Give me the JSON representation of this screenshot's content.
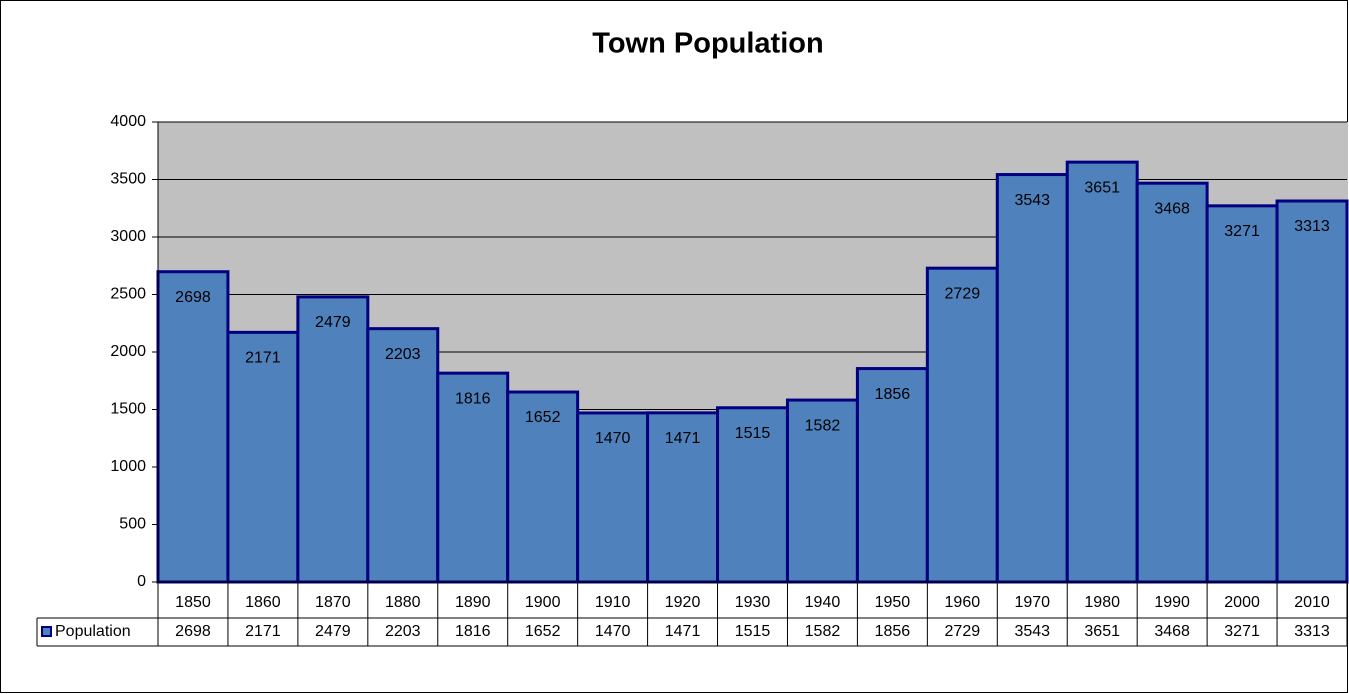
{
  "chart_data": {
    "type": "bar",
    "title": "Town Population",
    "categories": [
      "1850",
      "1860",
      "1870",
      "1880",
      "1890",
      "1900",
      "1910",
      "1920",
      "1930",
      "1940",
      "1950",
      "1960",
      "1970",
      "1980",
      "1990",
      "2000",
      "2010"
    ],
    "series": [
      {
        "name": "Population",
        "color": "#4f81bd",
        "values": [
          2698,
          2171,
          2479,
          2203,
          1816,
          1652,
          1470,
          1471,
          1515,
          1582,
          1856,
          2729,
          3543,
          3651,
          3468,
          3271,
          3313
        ]
      }
    ],
    "ylim": [
      0,
      4000
    ],
    "yticks": [
      0,
      500,
      1000,
      1500,
      2000,
      2500,
      3000,
      3500,
      4000
    ],
    "grid": true
  }
}
